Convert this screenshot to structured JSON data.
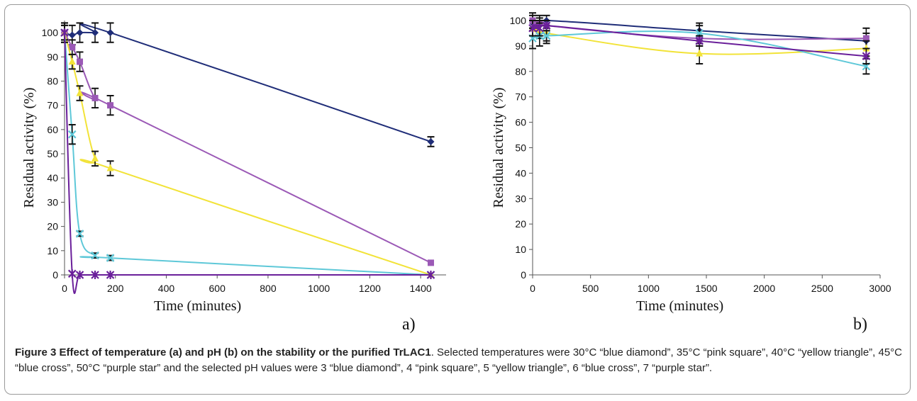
{
  "chart_data": [
    {
      "type": "line",
      "panel_label": "a)",
      "xlabel": "Time (minutes)",
      "ylabel": "Residual activity (%)",
      "xlim": [
        0,
        1500
      ],
      "ylim": [
        0,
        105
      ],
      "xticks": [
        0,
        200,
        400,
        600,
        800,
        1000,
        1200,
        1400
      ],
      "yticks": [
        0,
        10,
        20,
        30,
        40,
        50,
        60,
        70,
        80,
        90,
        100
      ],
      "grid": false,
      "series": [
        {
          "color": "#1f2d78",
          "marker": "diamond",
          "x": [
            0,
            30,
            60,
            120,
            180,
            1440
          ],
          "y": [
            100,
            99,
            100,
            100,
            100,
            55
          ],
          "err": [
            4,
            4,
            4,
            4,
            4,
            2
          ]
        },
        {
          "color": "#9b59b6",
          "marker": "square",
          "x": [
            0,
            30,
            60,
            120,
            180,
            1440
          ],
          "y": [
            100,
            94,
            88,
            73,
            70,
            5
          ],
          "err": [
            3,
            3,
            4,
            4,
            4,
            0
          ]
        },
        {
          "color": "#f2e338",
          "marker": "triangle",
          "x": [
            0,
            30,
            60,
            120,
            180,
            1440
          ],
          "y": [
            100,
            88,
            75,
            48,
            44,
            0
          ],
          "err": [
            3,
            3,
            3,
            3,
            3,
            0
          ]
        },
        {
          "color": "#5ec8d8",
          "marker": "cross",
          "x": [
            0,
            30,
            60,
            120,
            180,
            1440
          ],
          "y": [
            100,
            58,
            17,
            8,
            7,
            0
          ],
          "err": [
            4,
            4,
            1,
            1,
            1,
            0
          ]
        },
        {
          "color": "#6a1f9a",
          "marker": "star",
          "x": [
            0,
            30,
            60,
            120,
            180,
            1440
          ],
          "y": [
            100,
            0.5,
            0,
            0,
            0,
            0
          ],
          "err": [
            0,
            0,
            0,
            0,
            0,
            0
          ]
        }
      ]
    },
    {
      "type": "line",
      "panel_label": "b)",
      "xlabel": "Time (minutes)",
      "ylabel": "Residual activity (%)",
      "xlim": [
        0,
        3000
      ],
      "ylim": [
        0,
        100
      ],
      "xticks": [
        0,
        500,
        1000,
        1500,
        2000,
        2500,
        3000
      ],
      "yticks": [
        0,
        10,
        20,
        30,
        40,
        50,
        60,
        70,
        80,
        90,
        100
      ],
      "grid": false,
      "series": [
        {
          "color": "#1f2d78",
          "marker": "diamond",
          "x": [
            0,
            60,
            120,
            1440,
            2880
          ],
          "y": [
            99,
            98,
            100,
            96,
            92
          ],
          "err": [
            3,
            3,
            2,
            3,
            3
          ]
        },
        {
          "color": "#9b59b6",
          "marker": "square",
          "x": [
            0,
            60,
            120,
            1440,
            2880
          ],
          "y": [
            100,
            99,
            98,
            93,
            93
          ],
          "err": [
            3,
            3,
            2,
            3,
            4
          ]
        },
        {
          "color": "#f2e338",
          "marker": "triangle",
          "x": [
            0,
            60,
            120,
            1440,
            2880
          ],
          "y": [
            97,
            96,
            95,
            87,
            89
          ],
          "err": [
            3,
            3,
            3,
            4,
            3
          ]
        },
        {
          "color": "#5ec8d8",
          "marker": "cross",
          "x": [
            0,
            60,
            120,
            1440,
            2880
          ],
          "y": [
            93,
            94,
            94,
            95,
            82
          ],
          "err": [
            4,
            4,
            3,
            3,
            3
          ]
        },
        {
          "color": "#6a1f9a",
          "marker": "star",
          "x": [
            0,
            60,
            120,
            1440,
            2880
          ],
          "y": [
            97,
            97,
            98,
            92,
            86
          ],
          "err": [
            3,
            3,
            2,
            2,
            3
          ]
        }
      ]
    }
  ],
  "caption": {
    "title": "Figure 3 Effect of temperature (a) and pH (b) on the stability or the purified TrLAC1",
    "text": ". Selected temperatures were 30°C “blue diamond”, 35°C “pink square”, 40°C “yellow triangle”, 45°C “blue cross”, 50°C “purple star” and the selected pH values were 3 “blue diamond”, 4 “pink square”, 5 “yellow triangle”, 6 “blue cross”, 7 “purple star”."
  }
}
